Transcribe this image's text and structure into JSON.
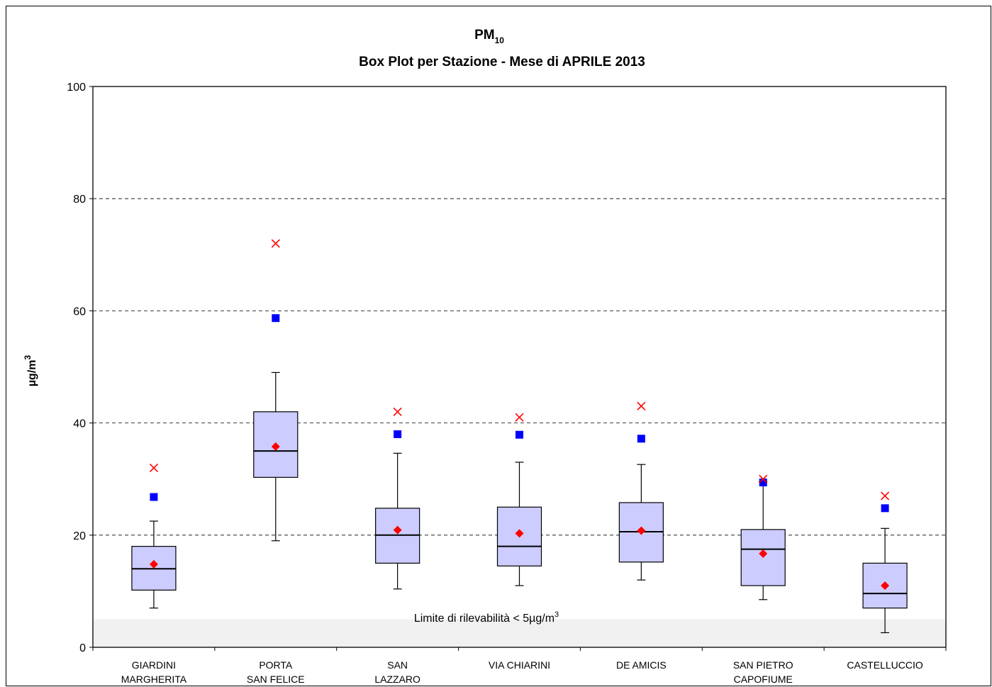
{
  "chart_data": {
    "type": "boxplot",
    "title_main": "PM",
    "title_sub": "10",
    "title_line2": "Box Plot per Stazione - Mese di APRILE 2013",
    "ylabel_main": "µg/m",
    "ylabel_sup": "3",
    "ylim": [
      0,
      100
    ],
    "yticks": [
      0,
      20,
      40,
      60,
      80,
      100
    ],
    "grid": "dashed horizontal at 20, 40, 60, 80",
    "detection_limit": {
      "value": 5,
      "label_main": "Limite di rilevabilità < 5µg/m",
      "label_sup": "3"
    },
    "categories": [
      [
        "GIARDINI",
        "MARGHERITA"
      ],
      [
        "PORTA",
        "SAN FELICE"
      ],
      [
        "SAN",
        "LAZZARO"
      ],
      [
        "VIA CHIARINI"
      ],
      [
        "DE AMICIS"
      ],
      [
        "SAN PIETRO",
        "CAPOFIUME"
      ],
      [
        "CASTELLUCCIO"
      ]
    ],
    "boxes": [
      {
        "whisker_low": 7,
        "q1": 10.2,
        "median": 14,
        "q3": 18,
        "whisker_high": 22.5,
        "mean": 14.8,
        "square": 26.8,
        "max": 32
      },
      {
        "whisker_low": 19,
        "q1": 30.3,
        "median": 35,
        "q3": 42,
        "whisker_high": 49,
        "mean": 35.8,
        "square": 58.7,
        "max": 72
      },
      {
        "whisker_low": 10.4,
        "q1": 15,
        "median": 20,
        "q3": 24.8,
        "whisker_high": 34.6,
        "mean": 20.9,
        "square": 38,
        "max": 42
      },
      {
        "whisker_low": 11,
        "q1": 14.5,
        "median": 18,
        "q3": 25,
        "whisker_high": 33,
        "mean": 20.3,
        "square": 37.9,
        "max": 41
      },
      {
        "whisker_low": 12,
        "q1": 15.2,
        "median": 20.6,
        "q3": 25.8,
        "whisker_high": 32.6,
        "mean": 20.8,
        "square": 37.2,
        "max": 43
      },
      {
        "whisker_low": 8.5,
        "q1": 11,
        "median": 17.5,
        "q3": 21,
        "whisker_high": 29.5,
        "mean": 16.7,
        "square": 29.4,
        "max": 30
      },
      {
        "whisker_low": 2.6,
        "q1": 7,
        "median": 9.6,
        "q3": 15,
        "whisker_high": 21.2,
        "mean": 11,
        "square": 24.8,
        "max": 27
      }
    ],
    "colors": {
      "box_fill": "#ccccff",
      "mean_marker": "#ff0000",
      "square_marker": "#0000ff",
      "max_marker": "#ff0000",
      "detection_band": "#f0f0f0",
      "grid": "#000000"
    }
  }
}
